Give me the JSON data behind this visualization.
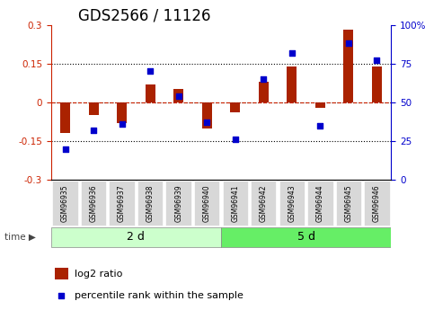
{
  "title": "GDS2566 / 11126",
  "samples": [
    "GSM96935",
    "GSM96936",
    "GSM96937",
    "GSM96938",
    "GSM96939",
    "GSM96940",
    "GSM96941",
    "GSM96942",
    "GSM96943",
    "GSM96944",
    "GSM96945",
    "GSM96946"
  ],
  "log2_ratio": [
    -0.12,
    -0.05,
    -0.08,
    0.07,
    0.05,
    -0.1,
    -0.04,
    0.08,
    0.14,
    -0.02,
    0.28,
    0.14
  ],
  "percentile_rank": [
    20,
    32,
    36,
    70,
    54,
    37,
    26,
    65,
    82,
    35,
    88,
    77
  ],
  "groups": [
    {
      "label": "2 d",
      "start": 0,
      "end": 6,
      "color": "#ccffcc"
    },
    {
      "label": "5 d",
      "start": 6,
      "end": 12,
      "color": "#66ee66"
    }
  ],
  "bar_color": "#aa2200",
  "dot_color": "#0000cc",
  "ylim_left": [
    -0.3,
    0.3
  ],
  "ylim_right": [
    0,
    100
  ],
  "yticks_left": [
    -0.3,
    -0.15,
    0.0,
    0.15,
    0.3
  ],
  "yticks_right": [
    0,
    25,
    50,
    75,
    100
  ],
  "ytick_labels_right": [
    "0",
    "25",
    "50",
    "75",
    "100%"
  ],
  "hlines": [
    0.15,
    0.0,
    -0.15
  ],
  "background_color": "#ffffff",
  "plot_bg_color": "#ffffff",
  "legend_bar_label": "log2 ratio",
  "legend_dot_label": "percentile rank within the sample",
  "time_label": "time",
  "title_fontsize": 12,
  "tick_fontsize": 7.5
}
